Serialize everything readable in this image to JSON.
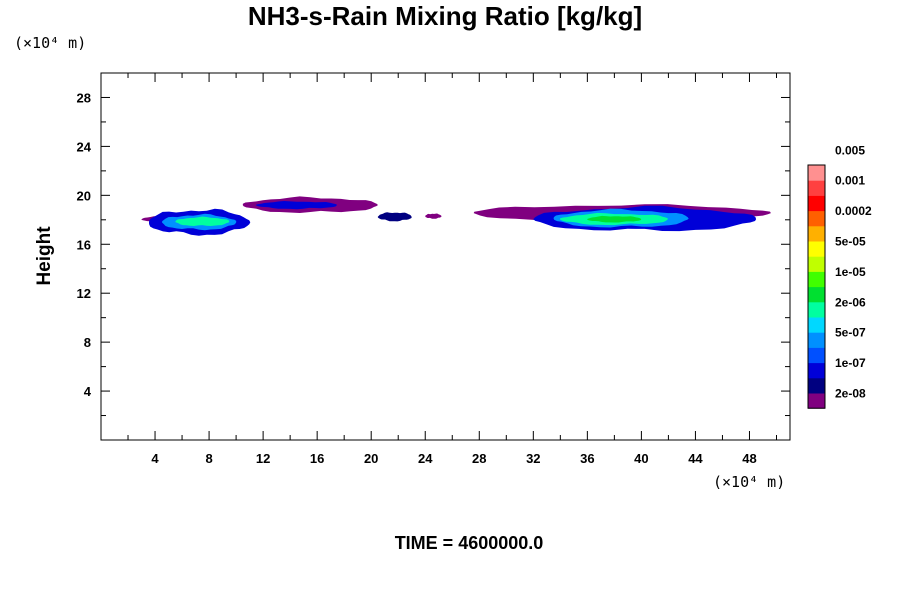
{
  "chart_data": {
    "type": "heatmap",
    "title": "NH3-s-Rain Mixing Ratio [kg/kg]",
    "ylabel": "Height",
    "x_unit": "(×10⁴ m)",
    "y_unit": "(×10⁴ m)",
    "footer": "TIME = 4600000.0",
    "xlim": [
      0,
      51
    ],
    "ylim": [
      0,
      30
    ],
    "xticks": [
      4,
      8,
      12,
      16,
      20,
      24,
      28,
      32,
      36,
      40,
      44,
      48
    ],
    "yticks": [
      4,
      8,
      12,
      16,
      20,
      24,
      28
    ],
    "colorbar": {
      "colors": [
        "#800080",
        "#000080",
        "#0000d8",
        "#0050ff",
        "#0090ff",
        "#00d8ff",
        "#00ffa0",
        "#00e030",
        "#40ff00",
        "#c0ff00",
        "#ffff00",
        "#ffb000",
        "#ff6000",
        "#ff0000",
        "#ff4040",
        "#ff9090"
      ],
      "labels": [
        "2e-08",
        "1e-07",
        "5e-07",
        "2e-06",
        "1e-05",
        "5e-05",
        "0.0002",
        "0.001",
        "0.005"
      ]
    },
    "regions": [
      {
        "x": [
          3,
          7.5
        ],
        "y": [
          17.8,
          18.3
        ],
        "level": 0
      },
      {
        "x": [
          3.5,
          11
        ],
        "y": [
          16.8,
          18.8
        ],
        "level": 2
      },
      {
        "x": [
          4.5,
          10
        ],
        "y": [
          17.2,
          18.4
        ],
        "level": 4
      },
      {
        "x": [
          5.5,
          9.5
        ],
        "y": [
          17.5,
          18.2
        ],
        "level": 6
      },
      {
        "x": [
          10.5,
          20.5
        ],
        "y": [
          18.6,
          19.8
        ],
        "level": 0
      },
      {
        "x": [
          11.5,
          17.5
        ],
        "y": [
          18.9,
          19.5
        ],
        "level": 2
      },
      {
        "x": [
          20.5,
          23
        ],
        "y": [
          17.9,
          18.6
        ],
        "level": 1
      },
      {
        "x": [
          24,
          25.2
        ],
        "y": [
          18.1,
          18.5
        ],
        "level": 0
      },
      {
        "x": [
          27.5,
          49.5
        ],
        "y": [
          17.9,
          19.2
        ],
        "level": 0
      },
      {
        "x": [
          32,
          48.5
        ],
        "y": [
          17.1,
          19.0
        ],
        "level": 2
      },
      {
        "x": [
          33.5,
          43.5
        ],
        "y": [
          17.4,
          18.8
        ],
        "level": 4
      },
      {
        "x": [
          34,
          42
        ],
        "y": [
          17.6,
          18.5
        ],
        "level": 6
      },
      {
        "x": [
          36,
          40
        ],
        "y": [
          17.8,
          18.3
        ],
        "level": 7
      }
    ]
  }
}
